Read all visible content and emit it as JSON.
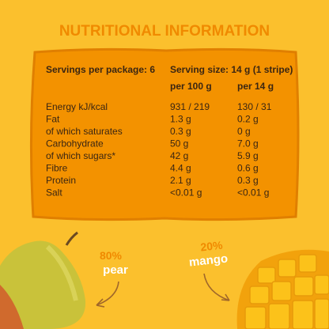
{
  "title": "NUTRITIONAL INFORMATION",
  "table": {
    "header": [
      "Servings per package: 6",
      "Serving size: 14 g (1 stripe)"
    ],
    "columns": [
      "per 100 g",
      "per 14 g"
    ],
    "rows": [
      [
        "Energy kJ/kcal",
        "931 / 219",
        "130 / 31"
      ],
      [
        "Fat",
        "1.3 g",
        "0.2 g"
      ],
      [
        "of which saturates",
        "0.3 g",
        "0 g"
      ],
      [
        "Carbohydrate",
        "50 g",
        "7.0 g"
      ],
      [
        "of which sugars*",
        "42 g",
        "5.9 g"
      ],
      [
        "Fibre",
        "4.4 g",
        "0.6 g"
      ],
      [
        "Protein",
        "2.1 g",
        "0.3 g"
      ],
      [
        "Salt",
        "<0.01 g",
        "<0.01 g"
      ]
    ]
  },
  "labels": [
    {
      "percent": "80%",
      "name": "pear"
    },
    {
      "percent": "20%",
      "name": "mango"
    }
  ]
}
